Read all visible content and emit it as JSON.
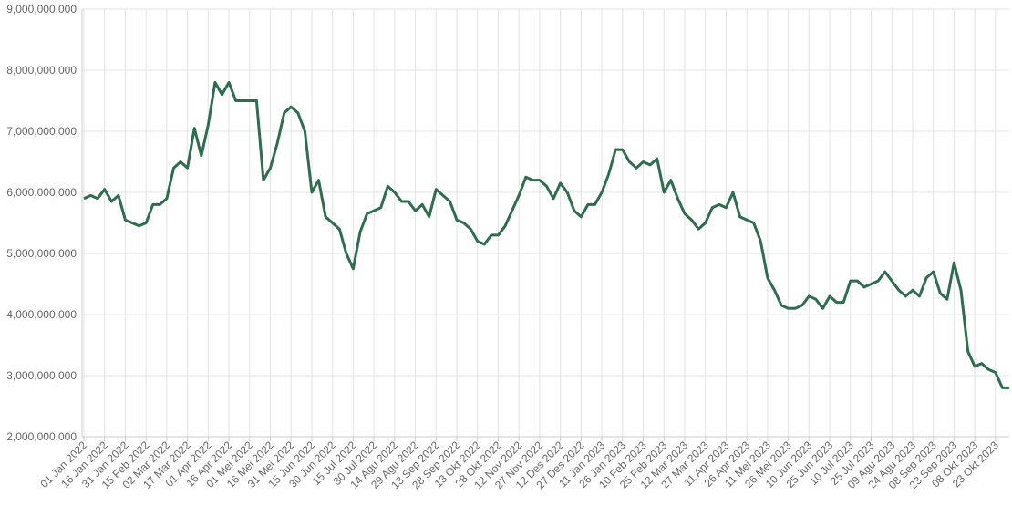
{
  "chart_data": {
    "type": "line",
    "categories": [
      "01 Jan 2022",
      null,
      null,
      "16 Jan 2022",
      null,
      null,
      "31 Jan 2022",
      null,
      null,
      "15 Feb 2022",
      null,
      null,
      "02 Mar 2022",
      null,
      null,
      "17 Mar 2022",
      null,
      null,
      "01 Apr 2022",
      null,
      null,
      "16 Apr 2022",
      null,
      null,
      "01 Mei 2022",
      null,
      null,
      "16 Mei 2022",
      null,
      null,
      "31 Mei 2022",
      null,
      null,
      "15 Jun 2022",
      null,
      null,
      "30 Jun 2022",
      null,
      null,
      "15 Jul 2022",
      null,
      null,
      "30 Jul 2022",
      null,
      null,
      "14 Agu 2022",
      null,
      null,
      "29 Agu 2022",
      null,
      null,
      "13 Sep 2022",
      null,
      null,
      "28 Sep 2022",
      null,
      null,
      "13 Okt 2022",
      null,
      null,
      "28 Okt 2022",
      null,
      null,
      "12 Nov 2022",
      null,
      null,
      "27 Nov 2022",
      null,
      null,
      "12 Des 2022",
      null,
      null,
      "27 Des 2022",
      null,
      null,
      "11 Jan 2023",
      null,
      null,
      "26 Jan 2023",
      null,
      null,
      "10 Feb 2023",
      null,
      null,
      "25 Feb 2023",
      null,
      null,
      "12 Mar 2023",
      null,
      null,
      "27 Mar 2023",
      null,
      null,
      "11 Apr 2023",
      null,
      null,
      "26 Apr 2023",
      null,
      null,
      "11 Mei 2023",
      null,
      null,
      "26 Mei 2023",
      null,
      null,
      "10 Jun 2023",
      null,
      null,
      "25 Jun 2023",
      null,
      null,
      "10 Jul 2023",
      null,
      null,
      "25 Jul 2023",
      null,
      null,
      "09 Agu 2023",
      null,
      null,
      "24 Agu 2023",
      null,
      null,
      "08 Sep 2023",
      null,
      null,
      "23 Sep 2023",
      null,
      null,
      "08 Okt 2023",
      null,
      null,
      "23 Okt 2023",
      null,
      null
    ],
    "series": [
      {
        "color": "#2e6e4e",
        "values": [
          5900000000,
          5950000000,
          5900000000,
          6050000000,
          5850000000,
          5950000000,
          5550000000,
          5500000000,
          5450000000,
          5500000000,
          5800000000,
          5800000000,
          5900000000,
          6400000000,
          6500000000,
          6400000000,
          7050000000,
          6600000000,
          7100000000,
          7800000000,
          7600000000,
          7800000000,
          7500000000,
          7500000000,
          7500000000,
          7500000000,
          6200000000,
          6400000000,
          6800000000,
          7300000000,
          7400000000,
          7300000000,
          7000000000,
          6000000000,
          6200000000,
          5600000000,
          5500000000,
          5400000000,
          5000000000,
          4750000000,
          5350000000,
          5650000000,
          5700000000,
          5750000000,
          6100000000,
          6000000000,
          5850000000,
          5850000000,
          5700000000,
          5800000000,
          5600000000,
          6050000000,
          5950000000,
          5850000000,
          5550000000,
          5500000000,
          5400000000,
          5200000000,
          5150000000,
          5300000000,
          5300000000,
          5450000000,
          5700000000,
          5950000000,
          6250000000,
          6200000000,
          6200000000,
          6100000000,
          5900000000,
          6150000000,
          6000000000,
          5700000000,
          5600000000,
          5800000000,
          5800000000,
          6000000000,
          6300000000,
          6700000000,
          6700000000,
          6500000000,
          6400000000,
          6500000000,
          6450000000,
          6550000000,
          6000000000,
          6200000000,
          5900000000,
          5650000000,
          5550000000,
          5400000000,
          5500000000,
          5750000000,
          5800000000,
          5750000000,
          6000000000,
          5600000000,
          5550000000,
          5500000000,
          5200000000,
          4600000000,
          4400000000,
          4150000000,
          4100000000,
          4100000000,
          4150000000,
          4300000000,
          4250000000,
          4100000000,
          4300000000,
          4200000000,
          4200000000,
          4550000000,
          4550000000,
          4450000000,
          4500000000,
          4550000000,
          4700000000,
          4550000000,
          4400000000,
          4300000000,
          4400000000,
          4300000000,
          4600000000,
          4700000000,
          4350000000,
          4250000000,
          4850000000,
          4400000000,
          3400000000,
          3150000000,
          3200000000,
          3100000000,
          3050000000,
          2800000000,
          2800000000
        ]
      }
    ],
    "ylim": [
      2000000000,
      9000000000
    ],
    "yticks": [
      {
        "value": 2000000000,
        "label": "2,000,000,000"
      },
      {
        "value": 3000000000,
        "label": "3,000,000,000"
      },
      {
        "value": 4000000000,
        "label": "4,000,000,000"
      },
      {
        "value": 5000000000,
        "label": "5,000,000,000"
      },
      {
        "value": 6000000000,
        "label": "6,000,000,000"
      },
      {
        "value": 7000000000,
        "label": "7,000,000,000"
      },
      {
        "value": 8000000000,
        "label": "8,000,000,000"
      },
      {
        "value": 9000000000,
        "label": "9,000,000,000"
      }
    ],
    "grid": true
  }
}
